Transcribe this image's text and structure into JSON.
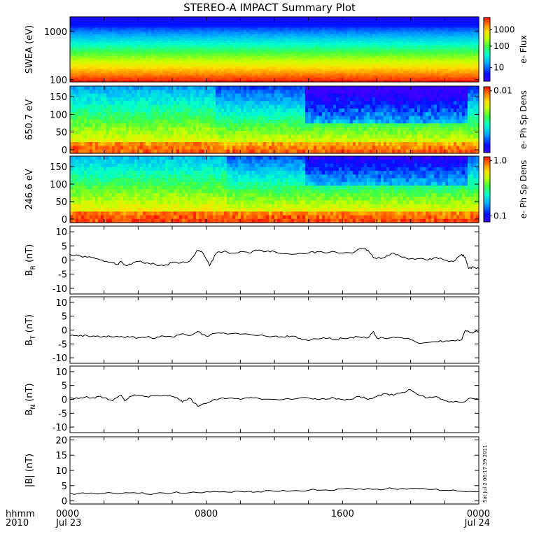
{
  "title": "STEREO-A IMPACT Summary Plot",
  "stamp": "Sat Jul  2 06:17:39 2011",
  "x_axis": {
    "ticks": [
      {
        "t": 0,
        "hhmm": "0000",
        "date": "Jul 23"
      },
      {
        "t": 8,
        "hhmm": "0800",
        "date": ""
      },
      {
        "t": 16,
        "hhmm": "1600",
        "date": ""
      },
      {
        "t": 24,
        "hhmm": "0000",
        "date": "Jul 24"
      }
    ],
    "label_top": "hhmm",
    "label_bottom": "2010",
    "range_hours": [
      0,
      24
    ]
  },
  "chart_data": [
    {
      "type": "heatmap",
      "name": "swea",
      "ylabel": "SWEA (eV)",
      "yscale": "log",
      "ylim": [
        90,
        2000
      ],
      "yticks": [
        "1000",
        "100"
      ],
      "colorbar": {
        "label": "e- Flux",
        "ticks": [
          "1000",
          "100",
          "10"
        ],
        "scale": "log",
        "range": [
          3,
          5000
        ]
      }
    },
    {
      "type": "heatmap",
      "name": "pad650",
      "ylabel": "650.7 eV",
      "ylim": [
        -10,
        180
      ],
      "yticks": [
        "150",
        "100",
        "50",
        "0"
      ],
      "colorbar": {
        "label": "e- Ph Sp Dens",
        "ticks": [
          "0.01"
        ],
        "scale": "log"
      }
    },
    {
      "type": "heatmap",
      "name": "pad246",
      "ylabel": "246.6 eV",
      "ylim": [
        -10,
        180
      ],
      "yticks": [
        "150",
        "100",
        "50",
        "0"
      ],
      "colorbar": {
        "label": "e- Ph Sp Dens",
        "ticks": [
          "1.0",
          "0.1"
        ],
        "scale": "log",
        "range": [
          0.1,
          1.0
        ]
      }
    },
    {
      "type": "line",
      "name": "br",
      "ylabel_main": "B",
      "ylabel_sub": "R",
      "ylabel_unit": "(nT)",
      "ylim": [
        -12,
        12
      ],
      "yticks": [
        "10",
        "5",
        "0",
        "-5",
        "-10"
      ],
      "x": [
        0,
        0.5,
        1,
        1.5,
        2,
        2.5,
        2.8,
        3,
        3.3,
        3.6,
        4,
        4.5,
        5,
        5.5,
        6,
        6.5,
        7,
        7.2,
        7.5,
        7.8,
        8.2,
        8.6,
        9,
        9.5,
        10,
        10.5,
        11,
        11.5,
        12,
        13,
        14,
        14.5,
        15,
        15.5,
        16,
        16.5,
        17,
        17.2,
        17.5,
        17.8,
        18,
        18.5,
        19,
        19.5,
        20,
        20.5,
        21,
        21.5,
        22,
        22.5,
        23,
        23.2,
        23.4,
        23.7,
        24
      ],
      "values": [
        2,
        1.5,
        1,
        0.5,
        -0.5,
        -1,
        -1.5,
        -0.5,
        -2,
        -1.5,
        -0.5,
        -1,
        -1.5,
        -2,
        -1,
        -1,
        -0.5,
        1,
        3.5,
        2.5,
        -2,
        2.5,
        3,
        2.5,
        3,
        2.5,
        3.5,
        3,
        3,
        2,
        2.5,
        3,
        2.5,
        3,
        2.5,
        2.5,
        4,
        4,
        3.5,
        1,
        0.5,
        1,
        2.5,
        1,
        0.5,
        0.5,
        0,
        1,
        0,
        -0.5,
        2,
        1,
        -3,
        -2.5,
        -3
      ]
    },
    {
      "type": "line",
      "name": "bt",
      "ylabel_main": "B",
      "ylabel_sub": "T",
      "ylabel_unit": "(nT)",
      "ylim": [
        -12,
        12
      ],
      "yticks": [
        "10",
        "5",
        "0",
        "-5",
        "-10"
      ],
      "x": [
        0,
        0.5,
        1,
        1.5,
        2,
        2.5,
        3,
        3.5,
        4,
        4.5,
        5,
        5.5,
        6,
        6.5,
        7,
        7.5,
        8,
        8.5,
        9,
        10,
        11,
        12,
        12.5,
        13,
        13.5,
        14,
        14.5,
        15,
        15.5,
        16,
        16.5,
        17,
        17.5,
        17.8,
        18,
        18.5,
        19,
        19.5,
        20,
        20.5,
        21,
        21.5,
        22,
        22.5,
        23,
        23.2,
        23.5,
        23.8,
        24
      ],
      "values": [
        -2,
        -2.2,
        -2,
        -2.3,
        -2.2,
        -2.5,
        -2.3,
        -2.6,
        -2.8,
        -2.5,
        -3,
        -2.2,
        -2.5,
        -1.5,
        -2,
        -0.5,
        -2.2,
        -1.2,
        -1,
        -1.5,
        -2,
        -2.2,
        -2.5,
        -2.2,
        -3,
        -3.8,
        -3.2,
        -3,
        -3.3,
        -3,
        -2.6,
        -2.5,
        -2.8,
        -0.5,
        -2.8,
        -3,
        -2.5,
        -2.8,
        -3.5,
        -4.8,
        -4.5,
        -4.2,
        -4,
        -3.8,
        -3.5,
        -0.2,
        -1,
        -0.5,
        -0.8
      ]
    },
    {
      "type": "line",
      "name": "bn",
      "ylabel_main": "B",
      "ylabel_sub": "N",
      "ylabel_unit": "(nT)",
      "ylim": [
        -12,
        12
      ],
      "yticks": [
        "10",
        "5",
        "0",
        "-5",
        "-10"
      ],
      "x": [
        0,
        0.5,
        1,
        1.3,
        1.6,
        2,
        2.5,
        3,
        3.2,
        3.5,
        4,
        4.5,
        5,
        5.5,
        6,
        6.3,
        6.6,
        7,
        7.5,
        8,
        8.5,
        9,
        9.5,
        10,
        10.5,
        11,
        12,
        13,
        14,
        14.5,
        15,
        15.5,
        16,
        16.5,
        17,
        17.5,
        18,
        18.5,
        19,
        19.5,
        20,
        20.5,
        21,
        21.5,
        22,
        22.5,
        23,
        23.5,
        24
      ],
      "values": [
        0.5,
        0.3,
        1,
        0.5,
        1,
        0.5,
        -0.5,
        1.5,
        -0.5,
        1,
        1.5,
        1,
        1.5,
        1.5,
        1,
        0.5,
        -1,
        0.5,
        -2.5,
        -1.5,
        0,
        0.5,
        0.5,
        0,
        0.5,
        0.5,
        0,
        0,
        0.5,
        0,
        0,
        0.5,
        0,
        0,
        1,
        0,
        1,
        2,
        1.5,
        2.5,
        3.5,
        1.5,
        0.5,
        1,
        -0.5,
        -1,
        -1,
        0.5,
        0
      ]
    },
    {
      "type": "line",
      "name": "bmag",
      "ylabel_main": "|B| (nT)",
      "ylim": [
        -1,
        21
      ],
      "yticks": [
        "20",
        "15",
        "10",
        "5",
        "0"
      ],
      "x": [
        0,
        1,
        2,
        3,
        4,
        5,
        6,
        7,
        8,
        9,
        10,
        11,
        12,
        13,
        14,
        15,
        16,
        17,
        18,
        19,
        20,
        21,
        22,
        23,
        24
      ],
      "values": [
        2.5,
        2.4,
        2.5,
        2.4,
        2.5,
        2.4,
        2.6,
        2.7,
        3.0,
        3.0,
        3.1,
        3.0,
        3.2,
        3.3,
        3.5,
        3.6,
        3.9,
        4.0,
        3.9,
        4.0,
        4.1,
        3.8,
        3.5,
        3.2,
        3.0
      ]
    }
  ]
}
